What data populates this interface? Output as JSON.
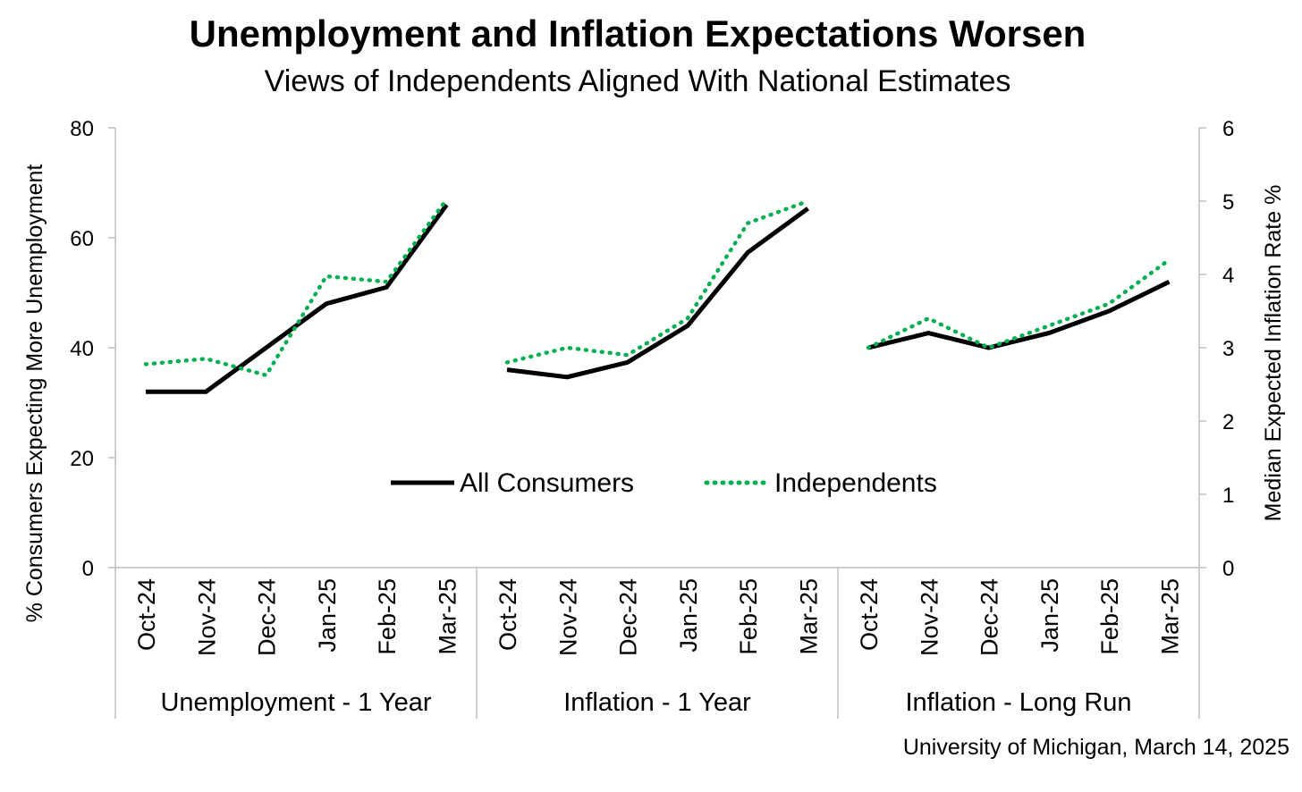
{
  "chart_data": {
    "type": "line",
    "title": "Unemployment and Inflation Expectations Worsen",
    "subtitle": "Views of Independents Aligned With National Estimates",
    "source": "University of Michigan, March 14, 2025",
    "ylabel_left": "% Consumers Expecting More Unemployment",
    "ylabel_right": "Median Expected Inflation Rate %",
    "ylim_left": [
      0,
      80
    ],
    "ylim_right": [
      0,
      6
    ],
    "yticks_left": [
      "0",
      "20",
      "40",
      "60",
      "80"
    ],
    "yticks_right": [
      "0",
      "1",
      "2",
      "3",
      "4",
      "5",
      "6"
    ],
    "grid": false,
    "legend_position": "center",
    "legend": [
      "All Consumers",
      "Independents"
    ],
    "groups": [
      {
        "name": "Unemployment - 1 Year",
        "axis": "left",
        "categories": [
          "Oct-24",
          "Nov-24",
          "Dec-24",
          "Jan-25",
          "Feb-25",
          "Mar-25"
        ],
        "series": [
          {
            "name": "All Consumers",
            "values": [
              32,
              32,
              40,
              48,
              51,
              66
            ]
          },
          {
            "name": "Independents",
            "values": [
              37,
              38,
              35,
              53,
              52,
              67
            ]
          }
        ]
      },
      {
        "name": "Inflation - 1 Year",
        "axis": "right",
        "categories": [
          "Oct-24",
          "Nov-24",
          "Dec-24",
          "Jan-25",
          "Feb-25",
          "Mar-25"
        ],
        "series": [
          {
            "name": "All Consumers",
            "values": [
              2.7,
              2.6,
              2.8,
              3.3,
              4.3,
              4.9
            ]
          },
          {
            "name": "Independents",
            "values": [
              2.8,
              3.0,
              2.9,
              3.4,
              4.7,
              5.0
            ]
          }
        ]
      },
      {
        "name": "Inflation - Long Run",
        "axis": "right",
        "categories": [
          "Oct-24",
          "Nov-24",
          "Dec-24",
          "Jan-25",
          "Feb-25",
          "Mar-25"
        ],
        "series": [
          {
            "name": "All Consumers",
            "values": [
              3.0,
              3.2,
              3.0,
              3.2,
              3.5,
              3.9
            ]
          },
          {
            "name": "Independents",
            "values": [
              3.0,
              3.4,
              3.0,
              3.3,
              3.6,
              4.2
            ]
          }
        ]
      }
    ],
    "colors": {
      "all_consumers": "#000000",
      "independents": "#00b050",
      "axis": "#bfbfbf"
    }
  }
}
